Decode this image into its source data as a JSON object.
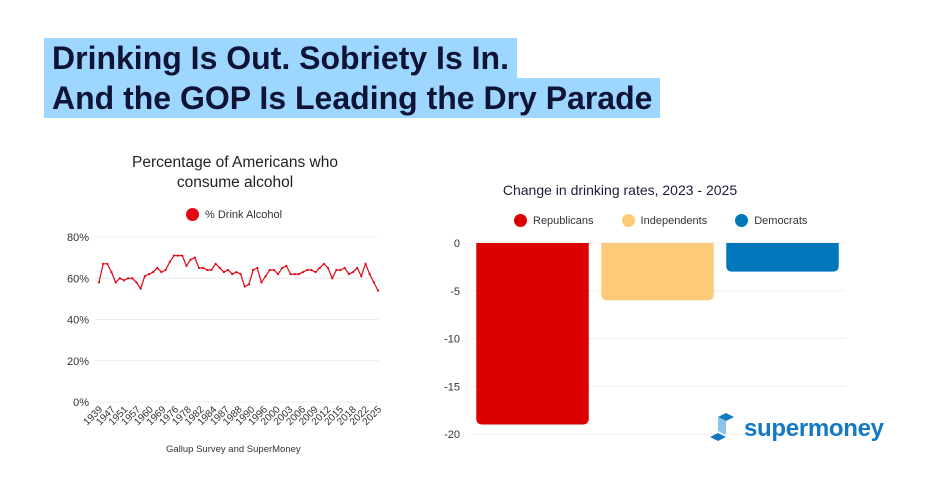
{
  "headline": {
    "line1": "Drinking Is Out. Sobriety Is In.",
    "line2": "And the GOP Is Leading the Dry Parade",
    "highlight_color": "#9dd6ff"
  },
  "brand": {
    "name": "supermoney",
    "color": "#1479c4"
  },
  "chart_data": [
    {
      "type": "line",
      "title": "Percentage of Americans who consume alcohol",
      "title_lines": [
        "Percentage of Americans who",
        "consume alcohol"
      ],
      "source": "Gallup Survey and SuperMoney",
      "legend": {
        "label": "% Drink Alcohol",
        "color": "#e30613",
        "placement": "top-center"
      },
      "ylim": [
        0,
        80
      ],
      "yticks": [
        0,
        20,
        40,
        60,
        80
      ],
      "ytick_labels": [
        "0%",
        "20%",
        "40%",
        "60%",
        "80%"
      ],
      "xtick_labels": [
        "1939",
        "1947",
        "1951",
        "1957",
        "1960",
        "1969",
        "1976",
        "1978",
        "1982",
        "1984",
        "1987",
        "1988",
        "1990",
        "1996",
        "2000",
        "2003",
        "2006",
        "2009",
        "2012",
        "2015",
        "2018",
        "2022",
        "2025"
      ],
      "grid": true,
      "series": [
        {
          "name": "% Drink Alcohol",
          "values": [
            58,
            67,
            67,
            63,
            58,
            60,
            59,
            60,
            60,
            58,
            55,
            61,
            62,
            63,
            65,
            63,
            64,
            68,
            71,
            71,
            71,
            66,
            69,
            70,
            65,
            65,
            64,
            64,
            67,
            65,
            63,
            64,
            62,
            63,
            62,
            56,
            57,
            64,
            65,
            58,
            61,
            64,
            64,
            62,
            65,
            66
          ]
        },
        {
          "name": "% Drink Alcohol (continued)",
          "values": [
            62,
            62,
            62,
            63,
            64,
            64,
            63,
            65,
            67,
            65,
            60,
            64,
            64,
            65,
            62,
            63,
            65,
            61,
            67,
            62,
            58,
            54
          ]
        }
      ]
    },
    {
      "type": "bar",
      "title": "Change in drinking rates, 2023 - 2025",
      "categories": [
        "Republicans",
        "Independents",
        "Democrats"
      ],
      "series": [
        {
          "name": "Republicans",
          "values": [
            -19
          ],
          "color": "#dd0000"
        },
        {
          "name": "Independents",
          "values": [
            -6
          ],
          "color": "#fdca7a"
        },
        {
          "name": "Democrats",
          "values": [
            -3
          ],
          "color": "#0077bb"
        }
      ],
      "legend_placement": "top-center",
      "ylim": [
        -20,
        0
      ],
      "yticks": [
        0,
        -5,
        -10,
        -15,
        -20
      ],
      "ytick_labels": [
        "0",
        "-5",
        "-10",
        "-15",
        "-20"
      ],
      "grid": true
    }
  ]
}
